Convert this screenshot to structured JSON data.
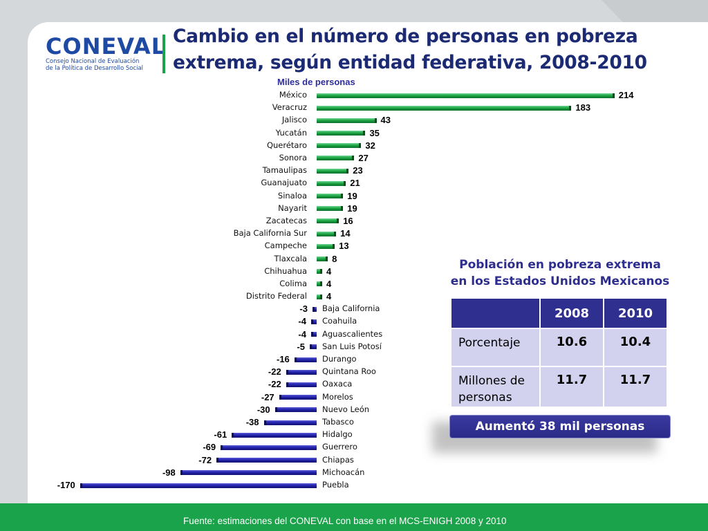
{
  "logo": {
    "word": "CONEVAL",
    "subtitle_1": "Consejo Nacional de Evaluación",
    "subtitle_2": "de la Política de Desarrollo Social"
  },
  "title_line1": "Cambio en el número de personas en pobreza",
  "title_line2": "extrema, según entidad federativa, 2008-2010",
  "colors": {
    "positive": "#16a13f",
    "negative": "#2020a8",
    "title": "#1b2a72",
    "footer": "#1aa34a"
  },
  "chart_data": {
    "type": "bar",
    "orientation": "horizontal",
    "title": "Cambio en el número de personas en pobreza extrema, según entidad federativa, 2008-2010",
    "units_label": "Miles de personas",
    "categories": [
      "México",
      "Veracruz",
      "Jalisco",
      "Yucatán",
      "Querétaro",
      "Sonora",
      "Tamaulipas",
      "Guanajuato",
      "Sinaloa",
      "Nayarit",
      "Zacatecas",
      "Baja California  Sur",
      "Campeche",
      "Tlaxcala",
      "Chihuahua",
      "Colima",
      "Distrito  Federal",
      "Baja California",
      "Coahuila",
      "Aguascalientes",
      "San Luis Potosí",
      "Durango",
      "Quintana Roo",
      "Oaxaca",
      "Morelos",
      "Nuevo León",
      "Tabasco",
      "Hidalgo",
      "Guerrero",
      "Chiapas",
      "Michoacán",
      "Puebla"
    ],
    "values": [
      214,
      183,
      43,
      35,
      32,
      27,
      23,
      21,
      19,
      19,
      16,
      14,
      13,
      8,
      4,
      4,
      4,
      -3,
      -4,
      -4,
      -5,
      -16,
      -22,
      -22,
      -27,
      -30,
      -38,
      -61,
      -69,
      -72,
      -98,
      -170
    ],
    "xlim": [
      -170,
      214
    ]
  },
  "side_panel": {
    "title_line1": "Población en pobreza extrema",
    "title_line2": "en los Estados Unidos Mexicanos",
    "table": {
      "headers": [
        "",
        "2008",
        "2010"
      ],
      "rows": [
        {
          "label": "Porcentaje",
          "v2008": "10.6",
          "v2010": "10.4"
        },
        {
          "label": "Millones de personas",
          "v2008": "11.7",
          "v2010": "11.7"
        }
      ]
    },
    "callout": "Aumentó  38 mil personas"
  },
  "footer": "Fuente: estimaciones del CONEVAL con base en el MCS-ENIGH 2008 y 2010"
}
